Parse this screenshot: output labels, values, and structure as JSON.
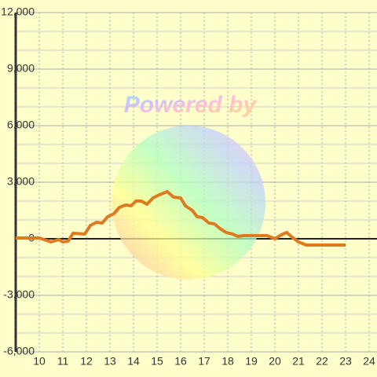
{
  "chart_data": {
    "type": "line",
    "annotation": "Powered by",
    "x": [
      9,
      10,
      10.5,
      10.83,
      11,
      11.23,
      11.43,
      11.93,
      12.17,
      12.43,
      12.67,
      12.9,
      13.17,
      13.4,
      13.67,
      13.9,
      14.1,
      14.33,
      14.57,
      14.83,
      15.1,
      15.43,
      15.7,
      16,
      16.2,
      16.5,
      16.7,
      16.93,
      17.2,
      17.43,
      17.67,
      17.93,
      18.2,
      18.43,
      18.67,
      19.67,
      20,
      20.27,
      20.5,
      20.73,
      21,
      21.33,
      23
    ],
    "series": [
      {
        "color": "#e07a20",
        "values": [
          42,
          42,
          -167,
          -42,
          -167,
          -125,
          292,
          250,
          708,
          875,
          833,
          1167,
          1333,
          1667,
          1792,
          1750,
          2000,
          2000,
          1833,
          2167,
          2333,
          2500,
          2208,
          2167,
          1750,
          1500,
          1167,
          1125,
          833,
          792,
          542,
          333,
          250,
          125,
          167,
          167,
          0,
          208,
          333,
          83,
          -167,
          -333,
          -333
        ]
      }
    ],
    "xlim": [
      9,
      24.333
    ],
    "xticks": [
      10,
      11,
      12,
      13,
      14,
      15,
      16,
      17,
      18,
      19,
      20,
      21,
      22,
      23,
      24
    ],
    "ylim": [
      -6000,
      12000
    ],
    "yticks": [
      {
        "value": -6000,
        "label": "-6,000"
      },
      {
        "value": -3000,
        "label": "-3,000"
      },
      0,
      {
        "value": 3000,
        "label": "3,000"
      },
      {
        "value": 6000,
        "label": "6,000"
      },
      {
        "value": 9000,
        "label": "9,000"
      },
      {
        "value": 12000,
        "label": "12,000"
      }
    ],
    "minor_yticks": [
      -5000,
      -4000,
      -2000,
      -1000,
      1000,
      2000,
      4000,
      5000,
      7000,
      8000,
      10000,
      11000
    ],
    "grid": true
  }
}
